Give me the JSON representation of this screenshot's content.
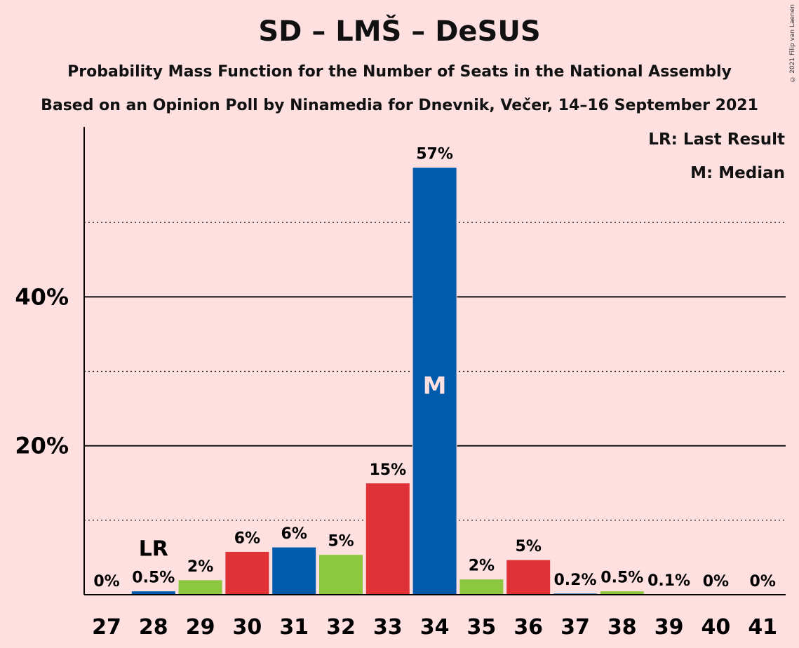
{
  "header": {
    "title": "SD – LMŠ – DeSUS",
    "subtitle1": "Probability Mass Function for the Number of Seats in the National Assembly",
    "subtitle2": "Based on an Opinion Poll by Ninamedia for Dnevnik, Večer, 14–16 September 2021",
    "copyright": "© 2021 Filip van Laenen"
  },
  "legend": {
    "lr": "LR: Last Result",
    "median": "M: Median"
  },
  "chart_data": {
    "type": "bar",
    "title": "SD – LMŠ – DeSUS",
    "categories": [
      "27",
      "28",
      "29",
      "30",
      "31",
      "32",
      "33",
      "34",
      "35",
      "36",
      "37",
      "38",
      "39",
      "40",
      "41"
    ],
    "values": [
      0,
      0.5,
      2,
      5.8,
      6.4,
      5.4,
      15,
      57.4,
      2.1,
      4.7,
      0.2,
      0.5,
      0.1,
      0,
      0
    ],
    "labels": [
      "0%",
      "0.5%",
      "2%",
      "6%",
      "6%",
      "5%",
      "15%",
      "57%",
      "2%",
      "5%",
      "0.2%",
      "0.5%",
      "0.1%",
      "0%",
      "0%"
    ],
    "colors": [
      "#005BAC",
      "#005BAC",
      "#8DC63F",
      "#E03136",
      "#005BAC",
      "#8DC63F",
      "#E03136",
      "#005BAC",
      "#8DC63F",
      "#E03136",
      "#005BAC",
      "#8DC63F",
      "#E03136",
      "#005BAC",
      "#8DC63F"
    ],
    "ylim": [
      0,
      60
    ],
    "yticks": [
      {
        "value": 20,
        "label": "20%"
      },
      {
        "value": 40,
        "label": "40%"
      }
    ],
    "minor_gridlines": [
      10,
      30,
      50
    ],
    "last_result": {
      "category": "28",
      "label": "LR"
    },
    "median": {
      "category": "34",
      "label": "M"
    }
  }
}
